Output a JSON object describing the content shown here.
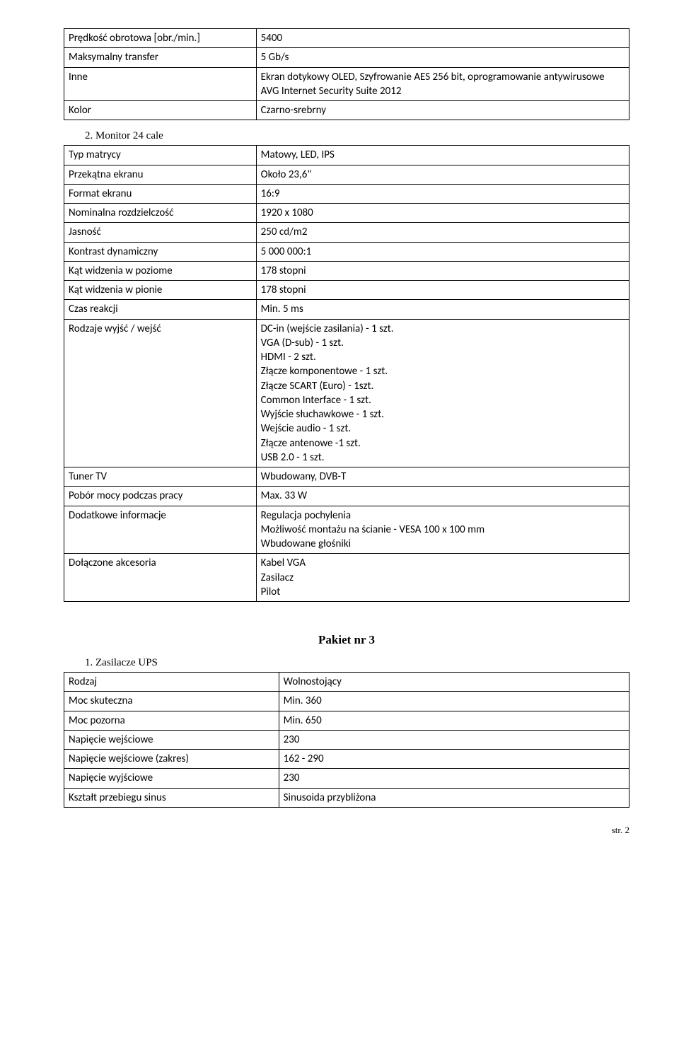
{
  "table1": {
    "rows": [
      [
        "Prędkość obrotowa [obr./min.]",
        "5400"
      ],
      [
        "Maksymalny transfer",
        "5 Gb/s"
      ],
      [
        "Inne",
        "Ekran dotykowy OLED, Szyfrowanie AES 256 bit, oprogramowanie antywirusowe AVG Internet Security Suite 2012"
      ],
      [
        "Kolor",
        "Czarno-srebrny"
      ]
    ]
  },
  "section2": {
    "title": "2.   Monitor 24 cale"
  },
  "table2": {
    "rows": [
      [
        "Typ matrycy",
        "Matowy, LED, IPS"
      ],
      [
        "Przekątna ekranu",
        "Około 23,6\""
      ],
      [
        "Format ekranu",
        "16:9"
      ],
      [
        "Nominalna rozdzielczość",
        "1920 x 1080"
      ],
      [
        "Jasność",
        "250 cd/m2"
      ],
      [
        "Kontrast dynamiczny",
        "5 000 000:1"
      ],
      [
        "Kąt widzenia w poziome",
        "178 stopni"
      ],
      [
        "Kąt widzenia w pionie",
        "178 stopni"
      ],
      [
        "Czas reakcji",
        "Min. 5 ms"
      ],
      [
        "Rodzaje wyjść / wejść",
        "DC-in (wejście zasilania) - 1 szt.\nVGA (D-sub) - 1 szt.\nHDMI - 2 szt.\nZłącze komponentowe - 1 szt.\nZłącze SCART (Euro) - 1szt.\nCommon Interface - 1 szt.\nWyjście słuchawkowe - 1 szt.\nWejście audio - 1 szt.\nZłącze antenowe -1 szt.\nUSB 2.0 - 1 szt."
      ],
      [
        "Tuner TV",
        "Wbudowany, DVB-T"
      ],
      [
        "Pobór mocy podczas pracy",
        "Max. 33 W"
      ],
      [
        "Dodatkowe informacje",
        "Regulacja pochylenia\nMożliwość montażu na ścianie - VESA 100 x 100 mm\nWbudowane głośniki"
      ],
      [
        "Dołączone akcesoria",
        "Kabel VGA\nZasilacz\nPilot"
      ]
    ]
  },
  "pakiet": {
    "title": "Pakiet nr 3"
  },
  "section3": {
    "title": "1.   Zasilacze UPS"
  },
  "table3": {
    "rows": [
      [
        "Rodzaj",
        "Wolnostojący"
      ],
      [
        "Moc skuteczna",
        "Min. 360"
      ],
      [
        "Moc pozorna",
        "Min. 650"
      ],
      [
        "Napięcie wejściowe",
        "230"
      ],
      [
        "Napięcie wejściowe (zakres)",
        "162 - 290"
      ],
      [
        "Napięcie wyjściowe",
        "230"
      ],
      [
        "Kształt przebiegu sinus",
        "Sinusoida przybliżona"
      ]
    ]
  },
  "pageNum": "str. 2"
}
